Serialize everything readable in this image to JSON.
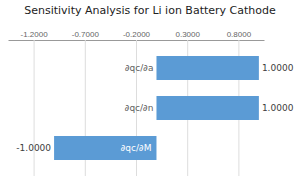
{
  "chart_data": {
    "type": "bar",
    "orientation": "horizontal",
    "title": "Sensitivity Analysis for Li ion Battery Cathode",
    "categories": [
      "∂qc/∂M",
      "∂qc/∂n",
      "∂qc/∂a"
    ],
    "values": [
      -1.0,
      1.0,
      1.0
    ],
    "value_labels": [
      "-1.0000",
      "1.0000",
      "1.0000"
    ],
    "data_labels": true,
    "color": "#5b9bd5",
    "xlim": [
      -1.45,
      1.05
    ],
    "xticks": [
      {
        "value": -1.2,
        "label": "-1.2000"
      },
      {
        "value": -0.7,
        "label": "-0.7000"
      },
      {
        "value": -0.2,
        "label": "-0.2000"
      },
      {
        "value": 0.3,
        "label": "0.3000"
      },
      {
        "value": 0.8,
        "label": "0.8000"
      }
    ],
    "grid": true
  }
}
